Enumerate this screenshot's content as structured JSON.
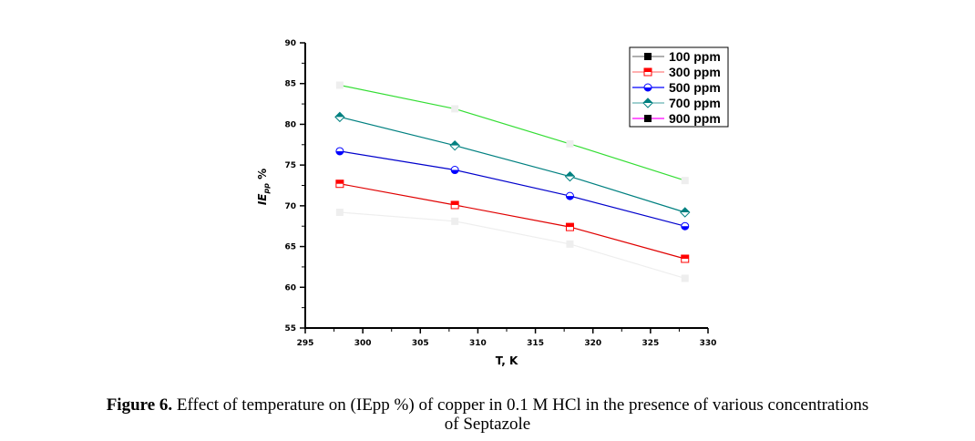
{
  "chart_data": {
    "type": "line",
    "title": "",
    "xlabel": "T, K",
    "ylabel": "IEpp %",
    "ylabel_main": "IE",
    "ylabel_sub": "pp",
    "ylabel_suffix": " %",
    "xlim": [
      295,
      330
    ],
    "ylim": [
      55,
      90
    ],
    "xticks": [
      295,
      300,
      305,
      310,
      315,
      320,
      325,
      330
    ],
    "yticks": [
      55,
      60,
      65,
      70,
      75,
      80,
      85,
      90
    ],
    "xtick_labels": [
      "295",
      "300",
      "305",
      "310",
      "315",
      "320",
      "325",
      "330"
    ],
    "ytick_labels": [
      "55",
      "60",
      "65",
      "70",
      "75",
      "80",
      "85",
      "90"
    ],
    "grid": false,
    "legend_position": "top-right",
    "x": [
      298,
      308,
      318,
      328
    ],
    "series": [
      {
        "name": "100 ppm",
        "values": [
          69.2,
          68.1,
          65.3,
          61.1
        ],
        "line_color": "#eeeeee",
        "marker_color": "#eeeeee",
        "legend_line_color": "#808080",
        "legend_marker_color": "#000000",
        "marker": "square"
      },
      {
        "name": "300 ppm",
        "values": [
          72.7,
          70.1,
          67.4,
          63.5
        ],
        "line_color": "#e00000",
        "marker_color": "#ff0000",
        "legend_line_color": "#ff8080",
        "legend_marker_color": "#ff0000",
        "marker": "half-square"
      },
      {
        "name": "500 ppm",
        "values": [
          76.7,
          74.4,
          71.2,
          67.5
        ],
        "line_color": "#0000cc",
        "marker_color": "#0000ff",
        "legend_line_color": "#0000ff",
        "legend_marker_color": "#0000ff",
        "marker": "half-circle"
      },
      {
        "name": "700 ppm",
        "values": [
          80.9,
          77.4,
          73.6,
          69.2
        ],
        "line_color": "#008080",
        "marker_color": "#008080",
        "legend_line_color": "#66b2b2",
        "legend_marker_color": "#008080",
        "marker": "half-diamond"
      },
      {
        "name": "900 ppm",
        "values": [
          84.8,
          81.9,
          77.6,
          73.1
        ],
        "line_color": "#33dd33",
        "marker_color": "#eeeeee",
        "legend_line_color": "#ff00ff",
        "legend_marker_color": "#000000",
        "marker": "square"
      }
    ]
  },
  "caption": {
    "label": "Figure 6.",
    "line1": " Effect of temperature on (IEpp %) of copper in 0.1 M HCl in the presence of various concentrations",
    "line2": "of Septazole"
  }
}
